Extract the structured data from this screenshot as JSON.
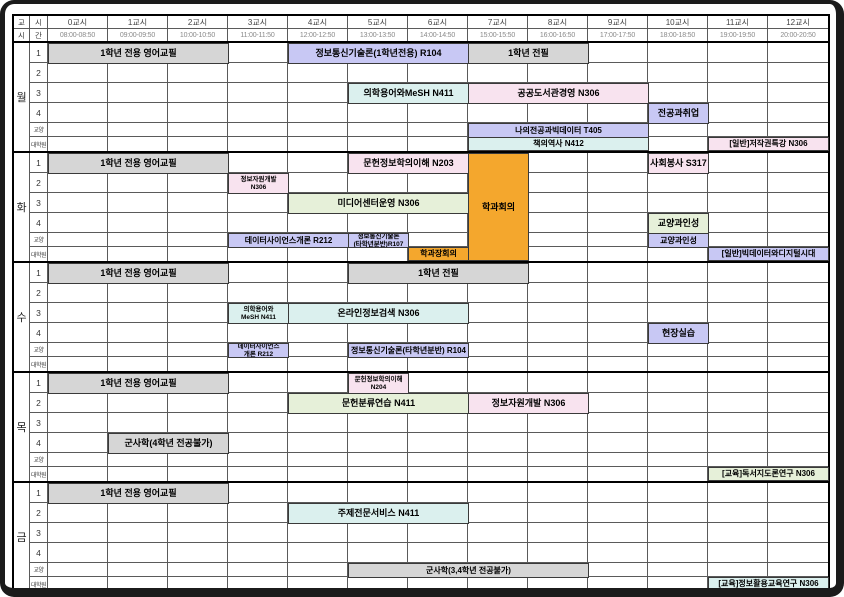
{
  "header": {
    "corner": [
      [
        "교",
        "시"
      ],
      [
        "시",
        "간"
      ]
    ],
    "periods": [
      {
        "label": "0교시",
        "time": "08:00-08:50"
      },
      {
        "label": "1교시",
        "time": "09:00-09:50"
      },
      {
        "label": "2교시",
        "time": "10:00-10:50"
      },
      {
        "label": "3교시",
        "time": "11:00-11:50"
      },
      {
        "label": "4교시",
        "time": "12:00-12:50"
      },
      {
        "label": "5교시",
        "time": "13:00-13:50"
      },
      {
        "label": "6교시",
        "time": "14:00-14:50"
      },
      {
        "label": "7교시",
        "time": "15:00-15:50"
      },
      {
        "label": "8교시",
        "time": "16:00-16:50"
      },
      {
        "label": "9교시",
        "time": "17:00-17:50"
      },
      {
        "label": "10교시",
        "time": "18:00-18:50"
      },
      {
        "label": "11교시",
        "time": "19:00-19:50"
      },
      {
        "label": "12교시",
        "time": "20:00-20:50"
      }
    ]
  },
  "row_labels": [
    "1",
    "2",
    "3",
    "4",
    "교양",
    "대학원"
  ],
  "colors": {
    "gray": "#d6d6d6",
    "purple": "#c8c8f4",
    "pink": "#f8e3ef",
    "cyan": "#dbf0ee",
    "green": "#e6f0d9",
    "orange": "#f4a72d"
  },
  "days": [
    {
      "name": "월",
      "blocks": [
        {
          "row": 0,
          "from": 0,
          "to": 2,
          "color": "gray",
          "lines": [
            "1학년 전용 영어교필"
          ]
        },
        {
          "row": 0,
          "from": 4,
          "to": 6,
          "color": "purple",
          "lines": [
            "정보통신기술론(1학년전용) R104"
          ]
        },
        {
          "row": 0,
          "from": 7,
          "to": 8,
          "color": "gray",
          "lines": [
            "1학년 전필"
          ]
        },
        {
          "row": 2,
          "from": 5,
          "to": 6,
          "color": "cyan",
          "lines": [
            "의학용어와MeSH N411"
          ]
        },
        {
          "row": 2,
          "from": 7,
          "to": 9,
          "color": "pink",
          "lines": [
            "공공도서관경영 N306"
          ]
        },
        {
          "row": 3,
          "from": 10,
          "to": 10,
          "color": "purple",
          "lines": [
            "전공과취업"
          ]
        },
        {
          "row": 4,
          "from": 7,
          "to": 9,
          "color": "purple",
          "lines": [
            "나의전공과빅데이터 T405"
          ]
        },
        {
          "row": 5,
          "from": 7,
          "to": 9,
          "color": "cyan",
          "lines": [
            "책의역사 N412"
          ]
        },
        {
          "row": 5,
          "from": 11,
          "to": 12,
          "color": "pink",
          "lines": [
            "[일반]저작권특강 N306"
          ]
        }
      ]
    },
    {
      "name": "화",
      "blocks": [
        {
          "row": 0,
          "from": 0,
          "to": 2,
          "color": "gray",
          "lines": [
            "1학년 전용 영어교필"
          ]
        },
        {
          "row": 0,
          "from": 5,
          "to": 6,
          "color": "pink",
          "lines": [
            "문헌정보학의이해 N203"
          ]
        },
        {
          "row": 0,
          "rowspan": 6,
          "from": 7,
          "to": 7,
          "color": "orange",
          "lines": [
            "학과회의"
          ]
        },
        {
          "row": 0,
          "from": 10,
          "to": 10,
          "color": "pink",
          "lines": [
            "사회봉사 S317"
          ]
        },
        {
          "row": 1,
          "from": 3,
          "to": 3,
          "color": "pink",
          "lines": [
            "정보자원개발",
            "N306"
          ]
        },
        {
          "row": 2,
          "from": 4,
          "to": 6,
          "color": "green",
          "lines": [
            "미디어센터운영 N306"
          ]
        },
        {
          "row": 3,
          "from": 10,
          "to": 10,
          "color": "green",
          "lines": [
            "교양과인성"
          ]
        },
        {
          "row": 4,
          "from": 3,
          "to": 4,
          "color": "purple",
          "lines": [
            "데이터사이언스개론 R212"
          ]
        },
        {
          "row": 4,
          "from": 5,
          "to": 5,
          "color": "purple",
          "lines": [
            "정보통신기술론",
            "(타학년분반)R107"
          ]
        },
        {
          "row": 4,
          "from": 10,
          "to": 10,
          "color": "purple",
          "lines": [
            "교양과인성"
          ]
        },
        {
          "row": 5,
          "from": 6,
          "to": 6,
          "color": "orange",
          "lines": [
            "학과장회의"
          ]
        },
        {
          "row": 5,
          "from": 11,
          "to": 12,
          "color": "purple",
          "lines": [
            "[일반]빅데이터와디지털시대"
          ]
        }
      ]
    },
    {
      "name": "수",
      "blocks": [
        {
          "row": 0,
          "from": 0,
          "to": 2,
          "color": "gray",
          "lines": [
            "1학년 전용 영어교필"
          ]
        },
        {
          "row": 0,
          "from": 5,
          "to": 7,
          "color": "gray",
          "lines": [
            "1학년 전필"
          ]
        },
        {
          "row": 2,
          "from": 3,
          "to": 3,
          "color": "cyan",
          "lines": [
            "의학용어와",
            "MeSH N411"
          ]
        },
        {
          "row": 2,
          "from": 4,
          "to": 6,
          "color": "cyan",
          "lines": [
            "온라인정보검색 N306"
          ]
        },
        {
          "row": 3,
          "from": 10,
          "to": 10,
          "color": "purple",
          "lines": [
            "현장실습"
          ]
        },
        {
          "row": 4,
          "from": 3,
          "to": 3,
          "color": "purple",
          "lines": [
            "데이터사이언스",
            "개론 R212"
          ]
        },
        {
          "row": 4,
          "from": 5,
          "to": 6,
          "color": "purple",
          "lines": [
            "정보통신기술론(타학년분반) R104"
          ]
        }
      ]
    },
    {
      "name": "목",
      "blocks": [
        {
          "row": 0,
          "from": 0,
          "to": 2,
          "color": "gray",
          "lines": [
            "1학년 전용 영어교필"
          ]
        },
        {
          "row": 0,
          "from": 5,
          "to": 5,
          "color": "pink",
          "lines": [
            "문헌정보학의이해",
            "N204"
          ]
        },
        {
          "row": 1,
          "from": 4,
          "to": 6,
          "color": "green",
          "lines": [
            "문헌분류연습 N411"
          ]
        },
        {
          "row": 1,
          "from": 7,
          "to": 8,
          "color": "pink",
          "lines": [
            "정보자원개발 N306"
          ]
        },
        {
          "row": 3,
          "from": 1,
          "to": 2,
          "color": "gray",
          "lines": [
            "군사학(4학년 전공불가)"
          ]
        },
        {
          "row": 5,
          "from": 11,
          "to": 12,
          "color": "green",
          "lines": [
            "[교육]독서지도론연구 N306"
          ]
        }
      ]
    },
    {
      "name": "금",
      "blocks": [
        {
          "row": 0,
          "from": 0,
          "to": 2,
          "color": "gray",
          "lines": [
            "1학년 전용 영어교필"
          ]
        },
        {
          "row": 1,
          "from": 4,
          "to": 6,
          "color": "cyan",
          "lines": [
            "주제전문서비스 N411"
          ]
        },
        {
          "row": 4,
          "from": 5,
          "to": 8,
          "color": "gray",
          "lines": [
            "군사학(3,4학년 전공불가)"
          ]
        },
        {
          "row": 5,
          "from": 11,
          "to": 12,
          "color": "cyan",
          "lines": [
            "[교육]정보활용교육연구 N306"
          ]
        }
      ]
    }
  ]
}
